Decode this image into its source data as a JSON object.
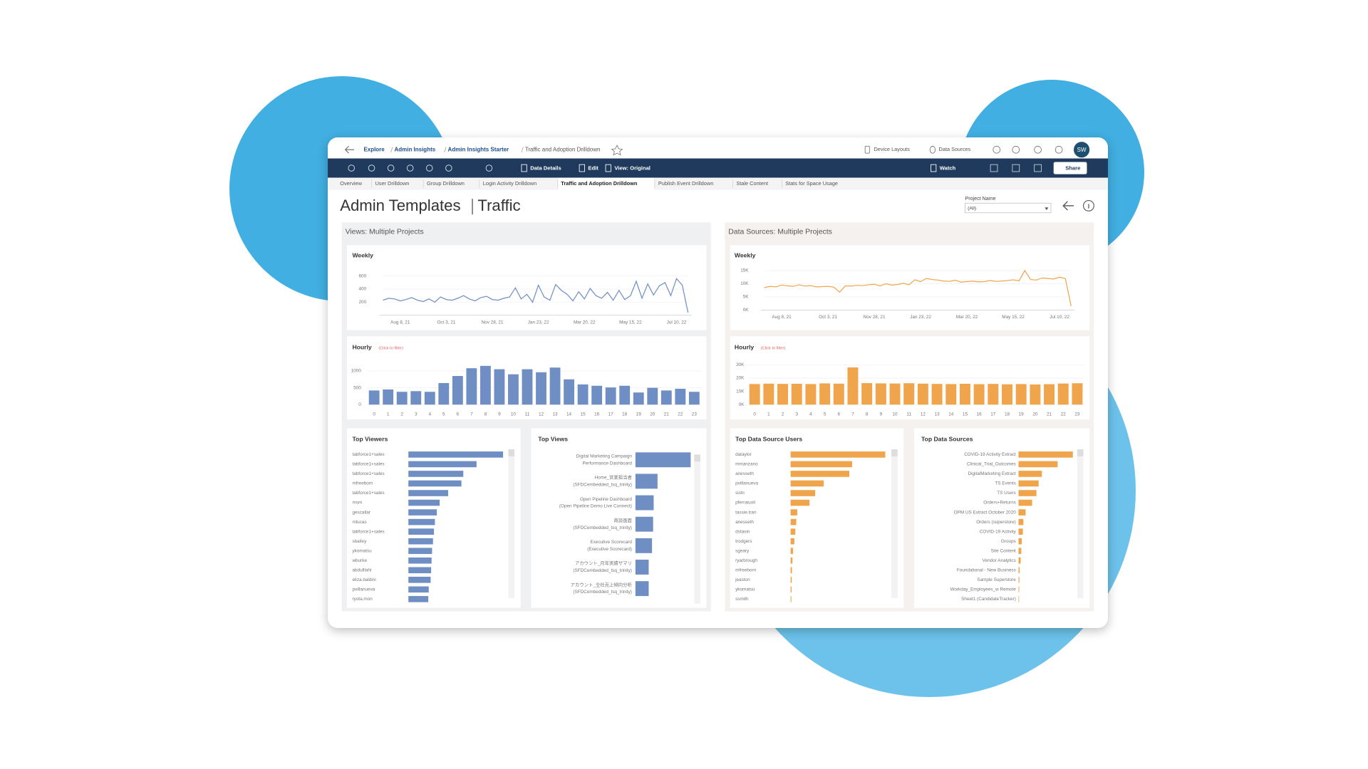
{
  "breadcrumb": [
    "Explore",
    "Admin Insights",
    "Admin Insights Starter",
    "Traffic and Adoption Drilldown"
  ],
  "header_actions": [
    "Device Layouts",
    "Data Sources"
  ],
  "avatar": "SW",
  "toolbar": [
    "Data Details",
    "Edit",
    "View: Original",
    "Watch",
    "Share"
  ],
  "tabs": [
    "Overview",
    "User Drilldown",
    "Group Drilldown",
    "Login Activity Drilldown",
    "Traffic and Adoption Drilldown",
    "Publish Event Drilldown",
    "Stale Content",
    "Stats for Space Usage"
  ],
  "active_tab": 4,
  "page_title": "Admin Templates",
  "page_subtitle": "Traffic",
  "filter": {
    "label": "Project Name",
    "value": "(All)"
  },
  "panels": [
    "Views: Multiple Projects",
    "Data Sources: Multiple Projects"
  ],
  "chart_data": [
    {
      "type": "line",
      "title": "Weekly",
      "color": "#6f8fc4",
      "categories": [
        null,
        null,
        null,
        "Aug 8, 21",
        null,
        null,
        null,
        null,
        null,
        null,
        null,
        "Oct 3, 21",
        null,
        null,
        null,
        null,
        null,
        null,
        null,
        "Nov 28, 21",
        null,
        null,
        null,
        null,
        null,
        null,
        null,
        "Jan 23, 22",
        null,
        null,
        null,
        null,
        null,
        null,
        null,
        "Mar 20, 22",
        null,
        null,
        null,
        null,
        null,
        null,
        null,
        "May 15, 22",
        null,
        null,
        null,
        null,
        null,
        null,
        null,
        "Jul 10, 22",
        null,
        null
      ],
      "values": [
        230,
        260,
        250,
        220,
        240,
        270,
        230,
        210,
        250,
        200,
        280,
        240,
        230,
        260,
        300,
        250,
        220,
        270,
        290,
        240,
        230,
        260,
        280,
        420,
        250,
        320,
        200,
        460,
        280,
        230,
        470,
        380,
        320,
        220,
        360,
        250,
        410,
        300,
        260,
        350,
        230,
        380,
        240,
        300,
        520,
        260,
        480,
        310,
        450,
        500,
        300,
        560,
        460,
        40
      ],
      "ylim": [
        0,
        750
      ],
      "yticks": [
        200,
        400,
        600
      ]
    },
    {
      "type": "bar",
      "orientation": "vertical",
      "title": "Hourly",
      "subtitle": "(Click to filter)",
      "color": "#6f8fc4",
      "categories": [
        "0",
        "1",
        "2",
        "3",
        "4",
        "5",
        "6",
        "7",
        "8",
        "9",
        "10",
        "11",
        "12",
        "13",
        "14",
        "15",
        "16",
        "17",
        "18",
        "19",
        "20",
        "21",
        "22",
        "23"
      ],
      "values": [
        420,
        450,
        380,
        400,
        380,
        640,
        850,
        1080,
        1150,
        1050,
        900,
        1050,
        960,
        1100,
        750,
        600,
        560,
        510,
        560,
        360,
        500,
        420,
        470,
        380
      ],
      "ylim": [
        0,
        1300
      ],
      "yticks": [
        0,
        500,
        1000
      ]
    },
    {
      "type": "bar",
      "orientation": "horizontal",
      "title": "Top Viewers",
      "color": "#6f8fc4",
      "categories": [
        "tabforce1+sales",
        "tabforce1+sales",
        "tabforce1+sales",
        "mfreeborn",
        "tabforce1+sales",
        "msm",
        "gescallar",
        "mlucas",
        "tabforce1+sales",
        "sbailey",
        "ykomatsu",
        "wburke",
        "abdulllahi",
        "eliza.baldini",
        "pvillanueva",
        "ryota.mon"
      ],
      "values": [
        1000,
        720,
        580,
        560,
        420,
        330,
        300,
        280,
        270,
        260,
        250,
        245,
        240,
        235,
        215,
        210
      ]
    },
    {
      "type": "bar",
      "orientation": "horizontal",
      "title": "Top Views",
      "color": "#6f8fc4",
      "categories": [
        [
          "Digital Marketing Campaign",
          "Performance Dashboard"
        ],
        [
          "Home_営業担当者",
          "(SFDCembedded_tsq_trinity)"
        ],
        [
          "Open Pipeline Dashboard",
          "(Open Pipeline Demo Live Connect)"
        ],
        [
          "商談画面",
          "(SFDCembedded_tsq_trinity)"
        ],
        [
          "Executive Scorecard",
          "(Executive Scorecard)"
        ],
        [
          "アカウント_月年実績サマリ",
          "(SFDCembedded_tsq_trinity)"
        ],
        [
          "アカウント_全社売上傾向分析",
          "(SFDCembedded_tsq_trinity)"
        ]
      ],
      "values": [
        1000,
        400,
        330,
        320,
        300,
        240,
        240
      ]
    },
    {
      "type": "line",
      "title": "Weekly",
      "color": "#f0a54c",
      "categories": [
        null,
        null,
        null,
        "Aug 8, 21",
        null,
        null,
        null,
        null,
        null,
        null,
        null,
        "Oct 3, 21",
        null,
        null,
        null,
        null,
        null,
        null,
        null,
        "Nov 28, 21",
        null,
        null,
        null,
        null,
        null,
        null,
        null,
        "Jan 23, 22",
        null,
        null,
        null,
        null,
        null,
        null,
        null,
        "Mar 20, 22",
        null,
        null,
        null,
        null,
        null,
        null,
        null,
        "May 15, 22",
        null,
        null,
        null,
        null,
        null,
        null,
        null,
        "Jul 10, 22",
        null,
        null
      ],
      "values": [
        8500,
        9000,
        8800,
        9500,
        9200,
        9000,
        9600,
        9100,
        9300,
        8800,
        8900,
        9000,
        8700,
        6800,
        9200,
        9100,
        9400,
        9300,
        9600,
        9800,
        9200,
        10000,
        9500,
        9700,
        10200,
        9600,
        11500,
        10800,
        12000,
        11600,
        11400,
        11000,
        10900,
        11300,
        10600,
        10800,
        11000,
        10700,
        10800,
        11200,
        10900,
        11000,
        11200,
        11500,
        11100,
        15000,
        11600,
        11400,
        12200,
        12000,
        11800,
        12500,
        12000,
        1500
      ],
      "ylim": [
        0,
        17000
      ],
      "yticks": [
        {
          "value": 0,
          "label": "0K"
        },
        {
          "value": 5000,
          "label": "5K"
        },
        {
          "value": 10000,
          "label": "10K"
        },
        {
          "value": 15000,
          "label": "15K"
        }
      ]
    },
    {
      "type": "bar",
      "orientation": "vertical",
      "title": "Hourly",
      "subtitle": "(Click to filter)",
      "color": "#f0a54c",
      "categories": [
        "0",
        "1",
        "2",
        "3",
        "4",
        "5",
        "6",
        "7",
        "8",
        "9",
        "10",
        "11",
        "12",
        "13",
        "14",
        "15",
        "16",
        "17",
        "18",
        "19",
        "20",
        "21",
        "22",
        "23"
      ],
      "values": [
        15500,
        15800,
        15600,
        15700,
        15500,
        16000,
        15800,
        28000,
        16200,
        16000,
        15900,
        16100,
        15800,
        15600,
        15500,
        15700,
        15400,
        15600,
        15300,
        15500,
        15200,
        15400,
        15900,
        16100
      ],
      "ylim": [
        0,
        33000
      ],
      "yticks": [
        {
          "value": 0,
          "label": "0K"
        },
        {
          "value": 10000,
          "label": "10K"
        },
        {
          "value": 20000,
          "label": "20K"
        },
        {
          "value": 30000,
          "label": "30K"
        }
      ]
    },
    {
      "type": "bar",
      "orientation": "horizontal",
      "title": "Top Data Source Users",
      "color": "#f0a54c",
      "categories": [
        "dataylor",
        "mmanzano",
        "anesseth",
        "pvillanueva",
        "sishi",
        "pferraiuoli",
        "tassie.tran",
        "anesseth",
        "dstasin",
        "trodgers",
        "sgeary",
        "ryarbrough",
        "mfreeborn",
        "jeaston",
        "ykomatsu",
        "ssmith"
      ],
      "values": [
        1000,
        650,
        620,
        350,
        260,
        200,
        70,
        60,
        50,
        40,
        25,
        20,
        15,
        12,
        10,
        8
      ]
    },
    {
      "type": "bar",
      "orientation": "horizontal",
      "title": "Top Data Sources",
      "color": "#f0a54c",
      "categories": [
        "COVID-19 Activity Extract",
        "Clinical_Trial_Outcomes",
        "DigitalMarketing Extract",
        "TS Events",
        "TS Users",
        "Orders+Returns",
        "OPM US Extract October 2020",
        "Orders (superstore)",
        "COVID-19 Activity",
        "Groups",
        "Site Content",
        "Vendor Analytics",
        "Foundational - New Business",
        "Sample Superstore",
        "Workday_Employees_w Remote",
        "Sheet1 (CandidateTracker)"
      ],
      "values": [
        1000,
        720,
        430,
        370,
        330,
        250,
        130,
        90,
        80,
        60,
        50,
        40,
        20,
        15,
        12,
        10
      ]
    }
  ]
}
